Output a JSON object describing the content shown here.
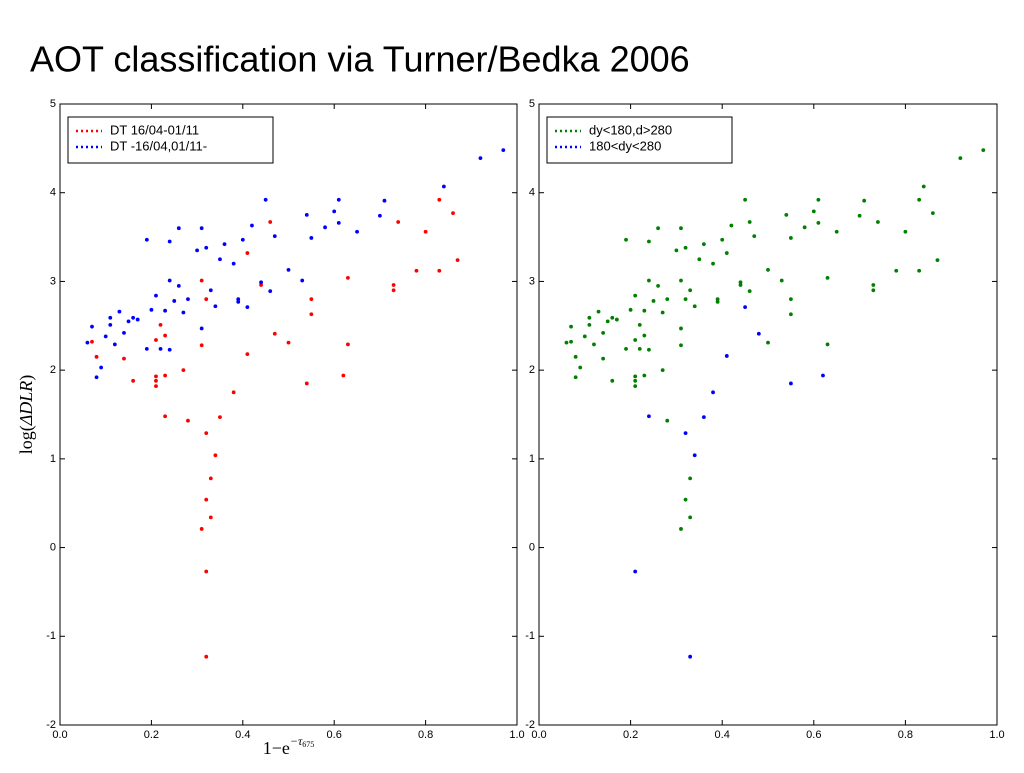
{
  "title": "AOT classification via Turner/Bedka 2006",
  "chart_data": [
    {
      "type": "scatter",
      "xlabel": {
        "base": "1−e",
        "exp": "−τ",
        "sub": "675"
      },
      "ylabel": {
        "pre": "log(",
        "sym": "ΔDLR",
        "post": ")"
      },
      "xlim": [
        0,
        1
      ],
      "ylim": [
        -2,
        5
      ],
      "xticks": [
        {
          "value": 0,
          "label": "0.0"
        },
        0.2,
        0.4,
        0.6,
        0.8,
        {
          "value": 1,
          "label": "1.0"
        }
      ],
      "yticks": [
        -2,
        -1,
        0,
        1,
        2,
        3,
        4,
        5
      ],
      "legend": "upper left",
      "series": [
        {
          "name": "DT 16/04-01/11",
          "color": "#ff0000",
          "x": [
            0.33,
            0.32,
            0.32,
            0.31,
            0.32,
            0.33,
            0.34,
            0.32,
            0.28,
            0.23,
            0.35,
            0.38,
            0.21,
            0.21,
            0.21,
            0.16,
            0.27,
            0.23,
            0.41,
            0.31,
            0.14,
            0.08,
            0.47,
            0.5,
            0.54,
            0.62,
            0.63,
            0.55,
            0.55,
            0.63,
            0.73,
            0.73,
            0.78,
            0.83,
            0.87,
            0.74,
            0.8,
            0.83,
            0.86,
            0.46,
            0.41,
            0.44,
            0.23,
            0.21,
            0.22,
            0.31,
            0.32,
            0.07
          ],
          "values": [
            0.34,
            -0.27,
            -1.23,
            0.21,
            0.54,
            0.78,
            1.04,
            1.29,
            1.43,
            1.48,
            1.47,
            1.75,
            1.88,
            1.82,
            1.93,
            1.88,
            2.0,
            1.94,
            2.18,
            2.28,
            2.13,
            2.15,
            2.41,
            2.31,
            1.85,
            1.94,
            2.29,
            2.63,
            2.8,
            3.04,
            2.96,
            2.9,
            3.12,
            3.12,
            3.24,
            3.67,
            3.56,
            3.92,
            3.77,
            3.67,
            3.32,
            2.96,
            2.39,
            2.34,
            2.51,
            3.01,
            2.8,
            2.32
          ]
        },
        {
          "name": "DT -16/04,01/11-",
          "color": "#0000ff",
          "x": [
            0.06,
            0.07,
            0.08,
            0.09,
            0.1,
            0.11,
            0.11,
            0.12,
            0.13,
            0.14,
            0.15,
            0.16,
            0.17,
            0.19,
            0.19,
            0.2,
            0.21,
            0.22,
            0.23,
            0.24,
            0.24,
            0.24,
            0.25,
            0.26,
            0.26,
            0.27,
            0.28,
            0.3,
            0.31,
            0.31,
            0.32,
            0.33,
            0.34,
            0.35,
            0.36,
            0.38,
            0.39,
            0.39,
            0.4,
            0.42,
            0.44,
            0.45,
            0.46,
            0.47,
            0.5,
            0.53,
            0.54,
            0.55,
            0.58,
            0.6,
            0.61,
            0.61,
            0.65,
            0.7,
            0.71,
            0.84,
            0.92,
            0.97,
            0.41
          ],
          "values": [
            2.31,
            2.49,
            1.92,
            2.03,
            2.38,
            2.51,
            2.59,
            2.29,
            2.66,
            2.42,
            2.55,
            2.59,
            2.57,
            3.47,
            2.24,
            2.68,
            2.84,
            2.24,
            2.67,
            3.45,
            3.01,
            2.23,
            2.78,
            3.6,
            2.95,
            2.65,
            2.8,
            3.35,
            2.47,
            3.6,
            3.38,
            2.9,
            2.72,
            3.25,
            3.42,
            3.2,
            2.77,
            2.8,
            3.47,
            3.63,
            2.99,
            3.92,
            2.89,
            3.51,
            3.13,
            3.01,
            3.75,
            3.49,
            3.61,
            3.79,
            3.92,
            3.66,
            3.56,
            3.74,
            3.91,
            4.07,
            4.39,
            4.48,
            2.71
          ]
        }
      ]
    },
    {
      "type": "scatter",
      "xlim": [
        0,
        1
      ],
      "ylim": [
        -2,
        5
      ],
      "xticks": [
        {
          "value": 0,
          "label": "0.0"
        },
        0.2,
        0.4,
        0.6,
        0.8,
        {
          "value": 1,
          "label": "1.0"
        }
      ],
      "yticks": [
        -2,
        -1,
        0,
        1,
        2,
        3,
        4,
        5
      ],
      "legend": "upper left",
      "series": [
        {
          "name": "dy<180,d>280",
          "color": "#008000",
          "x": [
            0.33,
            0.31,
            0.32,
            0.33,
            0.28,
            0.21,
            0.21,
            0.21,
            0.16,
            0.27,
            0.23,
            0.31,
            0.14,
            0.08,
            0.5,
            0.63,
            0.55,
            0.55,
            0.63,
            0.73,
            0.73,
            0.78,
            0.83,
            0.87,
            0.74,
            0.8,
            0.83,
            0.86,
            0.46,
            0.41,
            0.44,
            0.23,
            0.21,
            0.22,
            0.31,
            0.32,
            0.07,
            0.06,
            0.07,
            0.08,
            0.09,
            0.1,
            0.11,
            0.11,
            0.12,
            0.13,
            0.14,
            0.15,
            0.16,
            0.17,
            0.19,
            0.19,
            0.2,
            0.21,
            0.22,
            0.23,
            0.24,
            0.24,
            0.24,
            0.25,
            0.26,
            0.26,
            0.27,
            0.28,
            0.3,
            0.31,
            0.31,
            0.32,
            0.33,
            0.34,
            0.35,
            0.36,
            0.38,
            0.39,
            0.39,
            0.4,
            0.42,
            0.44,
            0.45,
            0.46,
            0.47,
            0.5,
            0.53,
            0.54,
            0.55,
            0.58,
            0.6,
            0.61,
            0.61,
            0.65,
            0.7,
            0.71,
            0.84,
            0.92,
            0.97
          ],
          "values": [
            0.34,
            0.21,
            0.54,
            0.78,
            1.43,
            1.88,
            1.82,
            1.93,
            1.88,
            2.0,
            1.94,
            2.28,
            2.13,
            2.15,
            2.31,
            2.29,
            2.63,
            2.8,
            3.04,
            2.96,
            2.9,
            3.12,
            3.12,
            3.24,
            3.67,
            3.56,
            3.92,
            3.77,
            3.67,
            3.32,
            2.96,
            2.39,
            2.34,
            2.51,
            3.01,
            2.8,
            2.32,
            2.31,
            2.49,
            1.92,
            2.03,
            2.38,
            2.51,
            2.59,
            2.29,
            2.66,
            2.42,
            2.55,
            2.59,
            2.57,
            3.47,
            2.24,
            2.68,
            2.84,
            2.24,
            2.67,
            3.45,
            3.01,
            2.23,
            2.78,
            3.6,
            2.95,
            2.65,
            2.8,
            3.35,
            2.47,
            3.6,
            3.38,
            2.9,
            2.72,
            3.25,
            3.42,
            3.2,
            2.77,
            2.8,
            3.47,
            3.63,
            2.99,
            3.92,
            2.89,
            3.51,
            3.13,
            3.01,
            3.75,
            3.49,
            3.61,
            3.79,
            3.92,
            3.66,
            3.56,
            3.74,
            3.91,
            4.07,
            4.39,
            4.48
          ]
        },
        {
          "name": "180<dy<280",
          "color": "#0000ff",
          "x": [
            0.21,
            0.33,
            0.32,
            0.34,
            0.24,
            0.36,
            0.38,
            0.41,
            0.48,
            0.55,
            0.62,
            0.45
          ],
          "values": [
            -0.27,
            -1.23,
            1.29,
            1.04,
            1.48,
            1.47,
            1.75,
            2.16,
            2.41,
            1.85,
            1.94,
            2.71
          ]
        }
      ]
    }
  ]
}
